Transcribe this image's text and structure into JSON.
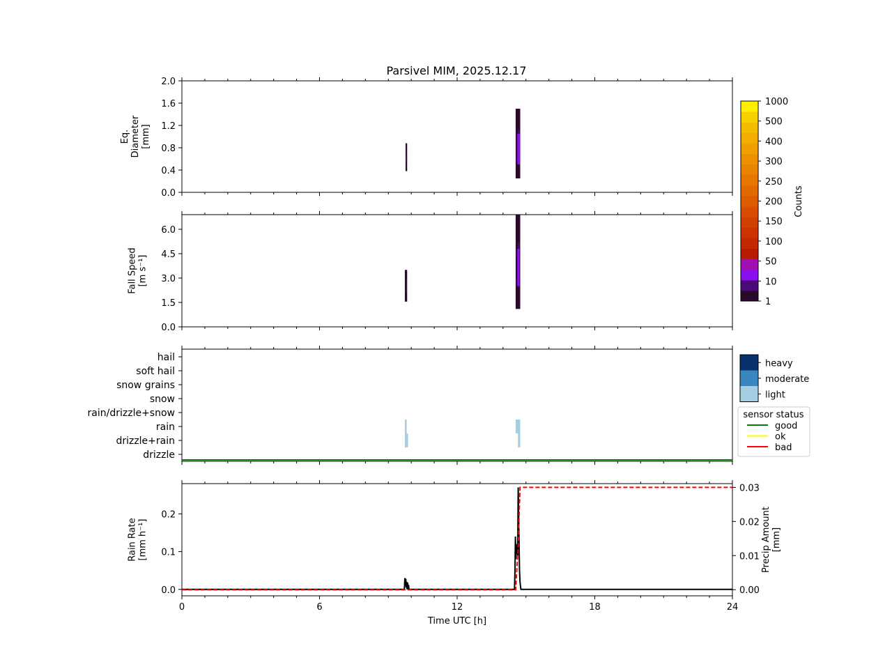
{
  "figure": {
    "title": "Parsivel MIM, 2025.12.17"
  },
  "colors": {
    "counts_scale": [
      "#2a0a2a",
      "#4b0a7a",
      "#8a10f0",
      "#a010b0",
      "#b81c00",
      "#c42800",
      "#cc3300",
      "#d24000",
      "#d84d00",
      "#de5c00",
      "#e26800",
      "#e67600",
      "#ea8400",
      "#ed9000",
      "#f09e00",
      "#f2ad00",
      "#f4bc00",
      "#f8d000",
      "#fff000"
    ],
    "intensity": {
      "light": "#a6cee3",
      "moderate": "#3a86c0",
      "heavy": "#08306b"
    },
    "status": {
      "good": "#008000",
      "ok": "#ffff00",
      "bad": "#ff0000"
    },
    "rain_rate": "#000000",
    "precip_amount": "#ff0000"
  },
  "chart_data": [
    {
      "type": "heatmap",
      "id": "diameter",
      "ylabel": [
        "Eq.",
        "Diameter",
        "[mm]"
      ],
      "ylim": [
        0,
        2.0
      ],
      "yticks": [
        "0.0",
        "0.4",
        "0.8",
        "1.2",
        "1.6",
        "2.0"
      ],
      "xlim": [
        0,
        24
      ],
      "events": [
        {
          "t0": 9.75,
          "t1": 9.82,
          "y0": 0.38,
          "y1": 0.88,
          "level": 1
        },
        {
          "t0": 14.55,
          "t1": 14.75,
          "y0": 0.25,
          "y1": 1.5,
          "level": 1
        },
        {
          "t0": 14.62,
          "t1": 14.74,
          "y0": 0.5,
          "y1": 1.05,
          "level": 2
        }
      ]
    },
    {
      "type": "heatmap",
      "id": "fallspeed",
      "ylabel": [
        "Fall Speed",
        "[m s⁻¹]"
      ],
      "ylim": [
        0,
        6.9
      ],
      "yticks": [
        "0.0",
        "1.5",
        "3.0",
        "4.5",
        "6.0"
      ],
      "xlim": [
        0,
        24
      ],
      "events": [
        {
          "t0": 9.72,
          "t1": 9.82,
          "y0": 1.55,
          "y1": 3.5,
          "level": 1
        },
        {
          "t0": 14.55,
          "t1": 14.75,
          "y0": 1.1,
          "y1": 6.9,
          "level": 1
        },
        {
          "t0": 14.62,
          "t1": 14.72,
          "y0": 2.5,
          "y1": 4.8,
          "level": 2
        }
      ]
    },
    {
      "type": "bar",
      "id": "weather",
      "categories": [
        "hail",
        "soft hail",
        "snow grains",
        "snow",
        "rain/drizzle+snow",
        "rain",
        "drizzle+rain",
        "drizzle"
      ],
      "events": [
        {
          "t0": 9.72,
          "t1": 9.8,
          "category": "rain",
          "intensity": "light"
        },
        {
          "t0": 9.72,
          "t1": 9.8,
          "category": "drizzle+rain",
          "intensity": "light"
        },
        {
          "t0": 9.8,
          "t1": 9.86,
          "category": "drizzle+rain",
          "intensity": "light"
        },
        {
          "t0": 14.55,
          "t1": 14.75,
          "category": "rain",
          "intensity": "light"
        },
        {
          "t0": 14.65,
          "t1": 14.75,
          "category": "drizzle+rain",
          "intensity": "light"
        }
      ],
      "status_line": {
        "value": "good",
        "from": 0,
        "to": 24
      },
      "intensity_legend": [
        "heavy",
        "moderate",
        "light"
      ],
      "status_legend": {
        "title": "sensor status",
        "entries": [
          "good",
          "ok",
          "bad"
        ]
      }
    },
    {
      "type": "line",
      "id": "rain",
      "xlabel": "Time UTC [h]",
      "xlim": [
        0,
        24
      ],
      "xticks": [
        "0",
        "6",
        "12",
        "18",
        "24"
      ],
      "ylabel": [
        "Rain Rate",
        "[mm h⁻¹]"
      ],
      "ylim": [
        -0.017,
        0.28
      ],
      "yticks": [
        "0.0",
        "0.1",
        "0.2"
      ],
      "y2label": [
        "Precip Amount",
        "[mm]"
      ],
      "y2lim": [
        -0.0018,
        0.0311
      ],
      "y2ticks": [
        "0.00",
        "0.01",
        "0.02",
        "0.03"
      ],
      "series": [
        {
          "axis": "left",
          "x": [
            0,
            9.7,
            9.72,
            9.74,
            9.76,
            9.78,
            9.8,
            9.82,
            9.84,
            9.86,
            9.88,
            9.9,
            14.5,
            14.52,
            14.54,
            14.56,
            14.58,
            14.6,
            14.62,
            14.64,
            14.66,
            14.68,
            14.7,
            14.72,
            14.74,
            14.76,
            14.78,
            24
          ],
          "y": [
            0,
            0,
            0.03,
            0.01,
            0.028,
            0.005,
            0.02,
            0.0,
            0.018,
            0.0,
            0.012,
            0,
            0,
            0.05,
            0.14,
            0.08,
            0.12,
            0.095,
            0.11,
            0.09,
            0.27,
            0.2,
            0.12,
            0.05,
            0.02,
            0.01,
            0,
            0
          ]
        },
        {
          "axis": "right",
          "x": [
            0,
            14.55,
            14.62,
            14.66,
            14.7,
            14.74,
            24
          ],
          "y": [
            0,
            0,
            0.008,
            0.012,
            0.022,
            0.03,
            0.03
          ]
        }
      ]
    }
  ],
  "colorbar": {
    "label": "Counts",
    "ticks": [
      "1",
      "10",
      "50",
      "100",
      "150",
      "200",
      "250",
      "300",
      "400",
      "500",
      "1000"
    ]
  }
}
